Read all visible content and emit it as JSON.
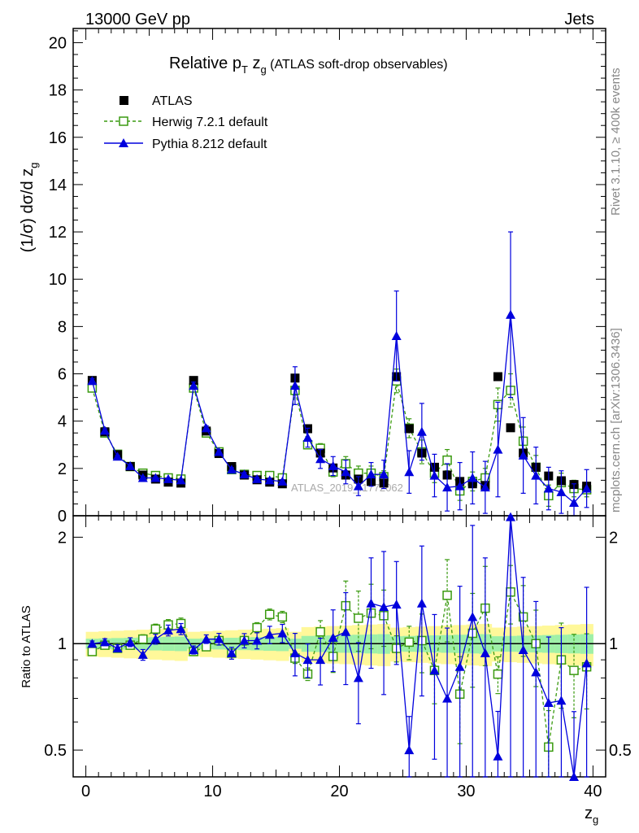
{
  "header": {
    "left": "13000 GeV pp",
    "right": "Jets"
  },
  "title": {
    "main": "Relative p",
    "sub": "T",
    "after": " z",
    "sub2": "g",
    "paren": " (ATLAS soft-drop observables)"
  },
  "side_labels": {
    "rivet": "Rivet 3.1.10, ≥ 400k events",
    "mcplots": "mcplots.cern.ch [arXiv:1306.3436]"
  },
  "watermark": "ATLAS_2019_I1772062",
  "axes": {
    "ylabel_main": "(1/σ) dσ/d z",
    "ylabel_main_sub": "g",
    "ylabel_ratio": "Ratio to ATLAS",
    "xlabel": "z",
    "xlabel_sub": "g",
    "main_ticks": [
      "0",
      "2",
      "4",
      "6",
      "8",
      "10",
      "12",
      "14",
      "16",
      "18",
      "20"
    ],
    "ratio_ticks": [
      "0.5",
      "1",
      "2"
    ],
    "x_ticks": [
      "0",
      "10",
      "20",
      "30",
      "40"
    ]
  },
  "legend": [
    {
      "label": "ATLAS",
      "color": "#000000",
      "marker": "square"
    },
    {
      "label": "Herwig 7.2.1 default",
      "color": "#3a9a10",
      "marker": "open-square"
    },
    {
      "label": "Pythia 8.212 default",
      "color": "#0000dd",
      "marker": "triangle"
    }
  ],
  "chart_data": {
    "type": "scatter",
    "x": [
      0.5,
      1.5,
      2.5,
      3.5,
      4.5,
      5.5,
      6.5,
      7.5,
      8.5,
      9.5,
      10.5,
      11.5,
      12.5,
      13.5,
      14.5,
      15.5,
      16.5,
      17.5,
      18.5,
      19.5,
      20.5,
      21.5,
      22.5,
      23.5,
      24.5,
      25.5,
      26.5,
      27.5,
      28.5,
      29.5,
      30.5,
      31.5,
      32.5,
      33.5,
      34.5,
      35.5,
      36.5,
      37.5,
      38.5,
      39.5
    ],
    "xlim": [
      -1,
      41
    ],
    "ylim_main": [
      0,
      20.6
    ],
    "ylim_ratio": [
      0.42,
      2.3
    ],
    "colors": {
      "atlas": "#000000",
      "herwig": "#3a9a10",
      "pythia": "#0000dd",
      "band_inner": "#9ef0a8",
      "band_outer": "#fff89a"
    },
    "series": [
      {
        "name": "ATLAS",
        "values": [
          5.72,
          3.55,
          2.58,
          2.08,
          1.72,
          1.55,
          1.42,
          1.38,
          5.72,
          3.58,
          2.63,
          2.08,
          1.72,
          1.52,
          1.42,
          1.35,
          5.82,
          3.68,
          2.65,
          2.02,
          1.72,
          1.55,
          1.45,
          1.38,
          5.88,
          3.68,
          2.65,
          2.05,
          1.72,
          1.45,
          1.35,
          1.28,
          5.88,
          3.72,
          2.65,
          2.05,
          1.68,
          1.48,
          1.32,
          1.25
        ]
      },
      {
        "name": "Herwig 7.2.1 default",
        "values": [
          5.4,
          3.5,
          2.6,
          2.08,
          1.8,
          1.7,
          1.6,
          1.55,
          5.4,
          3.5,
          2.7,
          1.95,
          1.75,
          1.7,
          1.7,
          1.6,
          5.3,
          3.0,
          2.85,
          1.85,
          2.2,
          1.8,
          1.8,
          1.65,
          5.7,
          3.7,
          2.7,
          1.8,
          2.35,
          1.05,
          1.45,
          1.6,
          4.7,
          5.3,
          3.15,
          2.05,
          0.85,
          1.4,
          1.15,
          1.1
        ],
        "errors": [
          0.05,
          0.05,
          0.05,
          0.05,
          0.05,
          0.05,
          0.05,
          0.05,
          0.1,
          0.06,
          0.05,
          0.05,
          0.05,
          0.05,
          0.05,
          0.05,
          0.2,
          0.15,
          0.2,
          0.2,
          0.3,
          0.3,
          0.3,
          0.25,
          0.5,
          0.4,
          0.5,
          0.4,
          0.45,
          0.4,
          0.4,
          0.4,
          0.7,
          0.7,
          0.6,
          0.5,
          0.45,
          0.4,
          0.35,
          0.3
        ]
      },
      {
        "name": "Pythia 8.212 default",
        "values": [
          5.7,
          3.6,
          2.5,
          2.1,
          1.6,
          1.6,
          1.55,
          1.5,
          5.5,
          3.7,
          2.7,
          1.95,
          1.75,
          1.55,
          1.5,
          1.45,
          5.5,
          3.3,
          2.4,
          2.1,
          1.85,
          1.25,
          1.75,
          1.75,
          7.6,
          1.85,
          3.55,
          1.7,
          1.2,
          1.25,
          1.6,
          1.2,
          2.8,
          8.5,
          2.55,
          1.7,
          1.15,
          1.0,
          0.55,
          1.15
        ],
        "errors": [
          0.1,
          0.08,
          0.06,
          0.06,
          0.06,
          0.05,
          0.05,
          0.05,
          0.15,
          0.1,
          0.1,
          0.08,
          0.08,
          0.08,
          0.08,
          0.08,
          0.8,
          0.4,
          0.4,
          0.4,
          0.5,
          0.4,
          0.5,
          0.6,
          1.9,
          0.9,
          1.2,
          0.9,
          1.0,
          1.0,
          1.1,
          1.1,
          2.0,
          3.5,
          1.6,
          1.2,
          0.9,
          0.9,
          0.8,
          0.8
        ]
      }
    ],
    "ratio": {
      "herwig": [
        0.95,
        0.99,
        0.97,
        0.99,
        1.03,
        1.1,
        1.13,
        1.14,
        0.95,
        0.98,
        1.02,
        0.94,
        1.02,
        1.11,
        1.21,
        1.19,
        0.91,
        0.82,
        1.08,
        0.92,
        1.28,
        1.18,
        1.22,
        1.2,
        0.97,
        1.01,
        1.02,
        0.84,
        1.37,
        0.72,
        1.07,
        1.26,
        0.82,
        1.4,
        1.19,
        1.0,
        0.51,
        0.9,
        0.84,
        0.86
      ],
      "pythia": [
        1.0,
        1.01,
        0.97,
        1.01,
        0.93,
        1.03,
        1.09,
        1.1,
        0.96,
        1.03,
        1.03,
        0.94,
        1.02,
        1.02,
        1.06,
        1.07,
        0.94,
        0.9,
        0.9,
        1.04,
        1.08,
        0.8,
        1.3,
        1.27,
        1.29,
        0.5,
        1.3,
        0.84,
        0.7,
        0.86,
        1.19,
        0.94,
        0.48,
        2.28,
        0.96,
        0.83,
        0.68,
        0.69,
        0.4,
        0.88
      ]
    }
  }
}
